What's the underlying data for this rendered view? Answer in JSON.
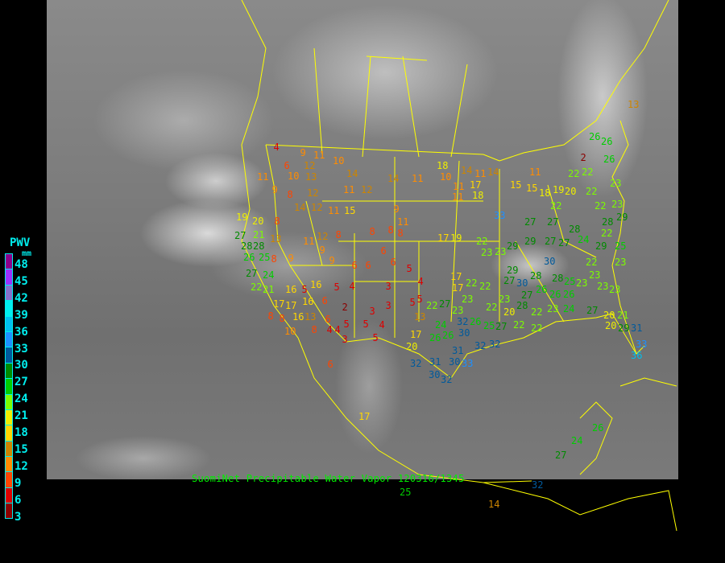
{
  "caption": "SuomiNet Precipitable Water Vapor 120316/1345",
  "legend": {
    "title": "PWV",
    "unit": "mm",
    "labels": [
      "48",
      "45",
      "42",
      "39",
      "36",
      "33",
      "30",
      "27",
      "24",
      "21",
      "18",
      "15",
      "12",
      "9",
      "6",
      "3"
    ],
    "colors": [
      "#8b008b",
      "#9b30ff",
      "#8470cc",
      "#00eeee",
      "#00bfee",
      "#1e90ff",
      "#005a9c",
      "#008b00",
      "#00cd00",
      "#7cfc00",
      "#eeee00",
      "#ffd700",
      "#cd8500",
      "#ff8c00",
      "#ff4500",
      "#dd0000",
      "#8b0000"
    ]
  },
  "border_color": "#ffff00",
  "stations": [
    "4",
    "9",
    "11",
    "10",
    "6",
    "12",
    "11",
    "10",
    "13",
    "14",
    "9",
    "8",
    "12",
    "11",
    "12",
    "14",
    "11",
    "18",
    "10",
    "14",
    "11",
    "11",
    "17",
    "19",
    "20",
    "8",
    "14",
    "12",
    "11",
    "15",
    "9",
    "11",
    "27",
    "21",
    "13",
    "11",
    "12",
    "8",
    "8",
    "8",
    "8",
    "28",
    "28",
    "26",
    "25",
    "8",
    "9",
    "9",
    "9",
    "6",
    "6",
    "6",
    "6",
    "5",
    "27",
    "24",
    "22",
    "21",
    "16",
    "5",
    "16",
    "5",
    "4",
    "3",
    "4",
    "17",
    "17",
    "16",
    "6",
    "2",
    "3",
    "3",
    "5",
    "5",
    "8",
    "8",
    "16",
    "13",
    "6",
    "5",
    "5",
    "4",
    "13",
    "10",
    "8",
    "4",
    "4",
    "3",
    "5",
    "17",
    "20",
    "6",
    "17",
    "17",
    "19",
    "22",
    "23",
    "23",
    "29",
    "33",
    "27",
    "27",
    "28",
    "29",
    "27",
    "29",
    "27",
    "30",
    "28",
    "30",
    "27",
    "24",
    "29",
    "25",
    "28",
    "26",
    "26",
    "26",
    "25",
    "23",
    "23",
    "23",
    "27",
    "23",
    "22",
    "28",
    "22",
    "23",
    "24",
    "27",
    "20",
    "21",
    "20",
    "29",
    "31",
    "33",
    "36",
    "17",
    "17",
    "22",
    "23",
    "22",
    "22",
    "27",
    "23",
    "32",
    "26",
    "25",
    "27",
    "20",
    "22",
    "22",
    "24",
    "26",
    "30",
    "32",
    "32",
    "26",
    "31",
    "31",
    "30",
    "33",
    "32",
    "32",
    "30",
    "15",
    "11",
    "15",
    "18",
    "19",
    "22",
    "20",
    "22",
    "22",
    "22",
    "26",
    "26",
    "26",
    "23",
    "23",
    "22",
    "28",
    "29",
    "22",
    "2",
    "13",
    "23",
    "23",
    "22",
    "11",
    "18",
    "14",
    "24",
    "27",
    "26",
    "25",
    "32",
    "14"
  ]
}
